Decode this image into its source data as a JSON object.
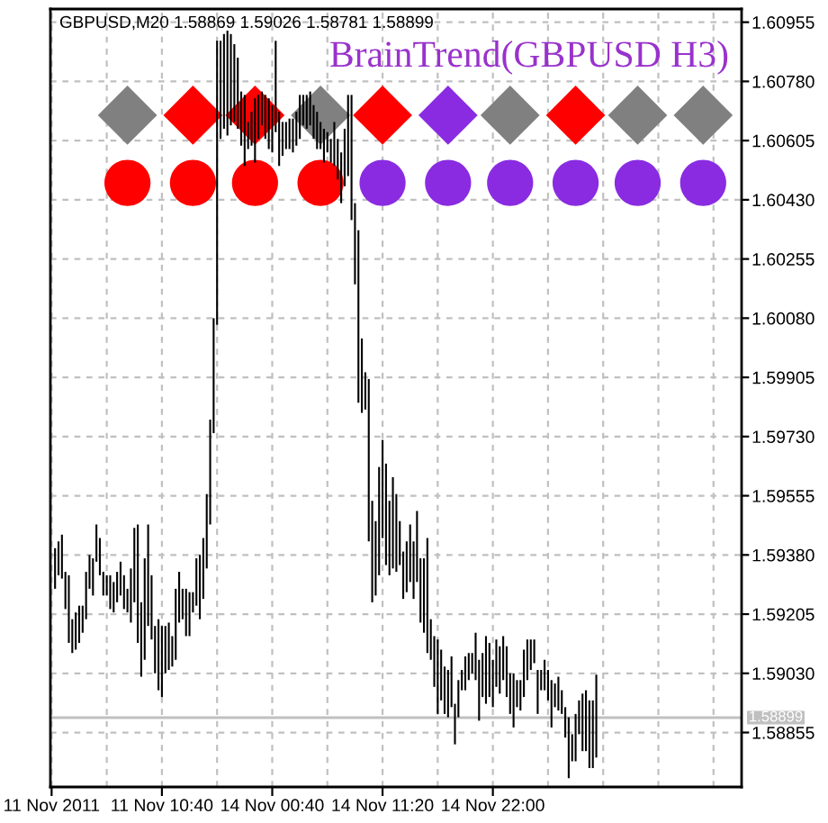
{
  "chart_data": {
    "type": "bar",
    "title": "GBPUSD,M20 1.58869 1.59026 1.58781 1.58899",
    "subtitle": "BrainTrend(GBPUSD H3)",
    "categories": [
      "11 Nov 2011",
      null,
      null,
      null,
      null,
      null,
      null,
      null,
      null,
      null,
      null,
      null,
      null,
      null,
      null,
      null,
      null,
      null,
      null,
      null,
      null,
      null,
      null,
      null,
      null,
      null,
      null,
      null,
      null,
      null,
      null,
      null,
      "11 Nov 10:40",
      null,
      null,
      null,
      null,
      null,
      null,
      null,
      null,
      null,
      null,
      null,
      null,
      null,
      null,
      null,
      null,
      null,
      null,
      null,
      null,
      null,
      null,
      null,
      null,
      null,
      null,
      null,
      null,
      null,
      null,
      null,
      "14 Nov 00:40",
      null,
      null,
      null,
      null,
      null,
      null,
      null,
      null,
      null,
      null,
      null,
      null,
      null,
      null,
      null,
      null,
      null,
      null,
      null,
      null,
      null,
      null,
      null,
      null,
      null,
      null,
      null,
      null,
      null,
      null,
      null,
      "14 Nov 11:20",
      null,
      null,
      null,
      null,
      null,
      null,
      null,
      null,
      null,
      null,
      null,
      null,
      null,
      null,
      null,
      null,
      null,
      null,
      null,
      null,
      null,
      null,
      null,
      null,
      null,
      null,
      null,
      null,
      null,
      null,
      null,
      "14 Nov 22:00",
      null,
      null,
      null,
      null,
      null,
      null,
      null,
      null,
      null,
      null,
      null,
      null,
      null,
      null,
      null,
      null,
      null,
      null,
      null,
      null,
      null,
      null,
      null,
      null,
      null,
      null,
      null,
      null,
      null,
      null,
      null,
      null,
      null,
      null,
      null,
      null,
      null,
      null,
      null,
      null,
      null,
      null,
      null,
      null,
      null,
      null,
      null,
      null,
      null,
      null,
      null,
      null,
      null,
      null,
      null,
      null,
      null,
      null,
      null,
      null,
      null,
      null,
      null,
      null,
      null,
      null,
      null,
      null,
      null,
      null,
      null,
      null
    ],
    "series": [
      {
        "color": "#000000",
        "values": [
          null,
          0.0012,
          0.001,
          0.0013,
          0.0011,
          0.002,
          0.001,
          0.0011,
          0.0011,
          0.0008,
          0.0014,
          0.001,
          0.0011,
          0.0011,
          0.0011,
          0.0007,
          0.0006,
          0.001,
          0.0009,
          0.0009,
          0.001,
          0.001,
          0.0007,
          0.0016,
          0.0022,
          0.0035,
          0.0022,
          0.003,
          0.003,
          0.0019,
          0.0014,
          0.0021,
          0.0021,
          0.0014,
          0.0014,
          0.0009,
          0.0021,
          0.0015,
          0.0009,
          0.0014,
          0.0013,
          0.0006,
          0.0014,
          0.0019,
          0.0018,
          0.0022,
          0.0031,
          0.0034,
          0.0084,
          0.0029,
          0.0028,
          0.0031,
          0.0027,
          0.0023,
          0.0021,
          0.0016,
          0.0021,
          0.0008,
          0.001,
          0.0019,
          0.0013,
          0.001,
          0.0013,
          0.0015,
          0.0014,
          0.0027,
          0.0016,
          0.001,
          0.0008,
          0.0009,
          0.001,
          0.001,
          0.0013,
          0.0009,
          0.001,
          0.001,
          0.001,
          0.0011,
          0.0008,
          0.001,
          0.0006,
          0.0007,
          0.0013,
          0.0012,
          0.0015,
          0.0017,
          0.0024,
          0.0037,
          0.0024,
          0.0051,
          0.0022,
          0.0011,
          0.0048,
          0.003,
          0.0022,
          0.0032,
          0.0029,
          0.003,
          0.0022,
          0.0027,
          0.0023,
          0.0013,
          0.0014,
          0.0015,
          0.0017,
          0.0017,
          0.0021,
          0.0019,
          0.0022,
          0.0034,
          0.0012,
          0.0015,
          0.0022,
          0.0015,
          0.0014,
          0.0014,
          0.0015,
          0.0012,
          0.0011,
          0.0006,
          0.001,
          0.0008,
          0.0006,
          0.0014,
          0.0018,
          0.0013,
          0.002,
          0.0016,
          0.0014,
          0.0014,
          0.0014,
          0.0013,
          0.0015,
          0.0012,
          0.0016,
          0.0008,
          0.0009,
          0.0014,
          0.0012,
          0.0009,
          0.0007,
          0.0013,
          0.0006,
          0.0009,
          0.0009,
          0.0014,
          0.0007,
          0.001,
          0.0007,
          0.0009,
          0.0018,
          0.0008,
          0.0014,
          0.001,
          0.0017,
          0.0018,
          0.002,
          0.002,
          0.00245,
          null,
          null,
          null,
          null,
          null,
          null,
          null,
          null,
          null,
          null,
          null,
          null,
          null,
          null,
          null,
          null,
          null,
          null,
          null,
          null,
          null,
          null,
          null,
          null,
          null,
          null,
          null,
          null,
          null,
          null,
          null,
          null,
          null,
          null,
          null,
          null,
          null,
          null,
          null,
          null,
          null,
          null
        ],
        "base": [
          null,
          1.5928,
          1.5932,
          1.5931,
          1.5922,
          1.5912,
          1.5909,
          1.591,
          1.5912,
          1.5915,
          1.5919,
          1.5928,
          1.5926,
          1.5936,
          1.5932,
          1.5926,
          1.5926,
          1.5922,
          1.5921,
          1.5924,
          1.5926,
          1.5922,
          1.5921,
          1.5918,
          1.5924,
          1.5912,
          1.5902,
          1.5907,
          1.5917,
          1.5913,
          1.5903,
          1.5898,
          1.5896,
          1.5903,
          1.5904,
          1.5905,
          1.5907,
          1.5918,
          1.5919,
          1.5914,
          1.5914,
          1.5921,
          1.5923,
          1.5919,
          1.5925,
          1.5934,
          1.5947,
          1.5974,
          1.6006,
          1.6061,
          1.6064,
          1.6062,
          1.6065,
          1.6066,
          1.6064,
          1.6059,
          1.6053,
          1.6058,
          1.6059,
          1.6054,
          1.6061,
          1.6065,
          1.6061,
          1.6058,
          1.6057,
          1.6063,
          1.6053,
          1.6056,
          1.6058,
          1.6058,
          1.6057,
          1.6059,
          1.6061,
          1.6065,
          1.6064,
          1.6065,
          1.6061,
          1.6058,
          1.6058,
          1.6054,
          1.6057,
          1.6054,
          1.6053,
          1.6049,
          1.6042,
          1.6047,
          1.605,
          1.6037,
          1.6018,
          1.5983,
          1.598,
          1.5981,
          1.5942,
          1.5924,
          1.5926,
          1.5932,
          1.5943,
          1.5935,
          1.5932,
          1.5934,
          1.5933,
          1.5935,
          1.5925,
          1.5927,
          1.593,
          1.5925,
          1.593,
          1.5918,
          1.5915,
          1.5909,
          1.5907,
          1.5899,
          1.5891,
          1.5895,
          1.5891,
          1.589,
          1.5893,
          1.5882,
          1.589,
          1.5898,
          1.5898,
          1.5901,
          1.5903,
          1.5901,
          1.5889,
          1.5896,
          1.5894,
          1.5896,
          1.5893,
          1.5899,
          1.5897,
          1.5901,
          1.5896,
          1.5891,
          1.5887,
          1.5893,
          1.5892,
          1.5896,
          1.5901,
          1.5904,
          1.5906,
          1.5891,
          1.5898,
          1.5898,
          1.5895,
          1.5887,
          1.5893,
          1.5892,
          1.5891,
          1.5884,
          1.5872,
          1.5877,
          1.5877,
          1.5885,
          1.588,
          1.588,
          1.5875,
          1.5875,
          1.58781,
          null,
          null,
          null,
          null,
          null,
          null,
          null,
          null,
          null,
          null,
          null,
          null,
          null,
          null,
          null,
          null,
          null,
          null,
          null,
          null,
          null,
          null,
          null,
          null,
          null,
          null,
          null,
          null,
          null,
          null,
          null,
          null,
          null,
          null,
          null,
          null,
          null,
          null,
          null,
          null,
          null,
          null
        ]
      },
      {
        "type": "scatter",
        "marker": "diamond",
        "values": [
          null,
          null,
          null,
          null,
          null,
          null,
          null,
          null,
          null,
          null,
          null,
          null,
          null,
          null,
          null,
          null,
          null,
          null,
          null,
          null,
          null,
          null,
          1.6068,
          null,
          null,
          null,
          null,
          null,
          null,
          null,
          null,
          null,
          null,
          null,
          null,
          null,
          null,
          null,
          null,
          null,
          null,
          1.6068,
          null,
          null,
          null,
          null,
          null,
          null,
          null,
          null,
          null,
          null,
          null,
          null,
          null,
          null,
          null,
          null,
          null,
          1.6068,
          null,
          null,
          null,
          null,
          null,
          null,
          null,
          null,
          null,
          null,
          null,
          null,
          null,
          null,
          null,
          null,
          null,
          null,
          1.6068,
          null,
          null,
          null,
          null,
          null,
          null,
          null,
          null,
          null,
          null,
          null,
          null,
          null,
          null,
          null,
          null,
          null,
          1.6068,
          null,
          null,
          null,
          null,
          null,
          null,
          null,
          null,
          null,
          null,
          null,
          null,
          null,
          null,
          null,
          null,
          null,
          null,
          1.6068,
          null,
          null,
          null,
          null,
          null,
          null,
          null,
          null,
          null,
          null,
          null,
          null,
          null,
          null,
          null,
          null,
          null,
          1.6068,
          null,
          null,
          null,
          null,
          null,
          null,
          null,
          null,
          null,
          null,
          null,
          null,
          null,
          null,
          null,
          null,
          null,
          null,
          1.6068,
          null,
          null,
          null,
          null,
          null,
          null,
          null,
          null,
          null,
          null,
          null,
          null,
          null,
          null,
          null,
          null,
          null,
          1.6068,
          null,
          null,
          null,
          null,
          null,
          null,
          null,
          null,
          null,
          null,
          null,
          null,
          null,
          null,
          null,
          null,
          null,
          null,
          1.6068,
          null,
          null,
          null,
          null,
          null,
          null,
          null,
          null,
          null,
          null,
          null
        ],
        "colors": [
          null,
          null,
          null,
          null,
          null,
          null,
          null,
          null,
          null,
          null,
          null,
          null,
          null,
          null,
          null,
          null,
          null,
          null,
          null,
          null,
          null,
          null,
          "#808080",
          null,
          null,
          null,
          null,
          null,
          null,
          null,
          null,
          null,
          null,
          null,
          null,
          null,
          null,
          null,
          null,
          null,
          null,
          "#ff0000",
          null,
          null,
          null,
          null,
          null,
          null,
          null,
          null,
          null,
          null,
          null,
          null,
          null,
          null,
          null,
          null,
          null,
          "#ff0000",
          null,
          null,
          null,
          null,
          null,
          null,
          null,
          null,
          null,
          null,
          null,
          null,
          null,
          null,
          null,
          null,
          null,
          null,
          "#808080",
          null,
          null,
          null,
          null,
          null,
          null,
          null,
          null,
          null,
          null,
          null,
          null,
          null,
          null,
          null,
          null,
          null,
          "#ff0000",
          null,
          null,
          null,
          null,
          null,
          null,
          null,
          null,
          null,
          null,
          null,
          null,
          null,
          null,
          null,
          null,
          null,
          null,
          "#8a2be2",
          null,
          null,
          null,
          null,
          null,
          null,
          null,
          null,
          null,
          null,
          null,
          null,
          null,
          null,
          null,
          null,
          null,
          "#808080",
          null,
          null,
          null,
          null,
          null,
          null,
          null,
          null,
          null,
          null,
          null,
          null,
          null,
          null,
          null,
          null,
          null,
          null,
          "#ff0000",
          null,
          null,
          null,
          null,
          null,
          null,
          null,
          null,
          null,
          null,
          null,
          null,
          null,
          null,
          null,
          null,
          null,
          "#808080",
          null,
          null,
          null,
          null,
          null,
          null,
          null,
          null,
          null,
          null,
          null,
          null,
          null,
          null,
          null,
          null,
          null,
          null,
          "#808080",
          null,
          null,
          null,
          null,
          null,
          null,
          null,
          null,
          null,
          null,
          null
        ]
      },
      {
        "type": "scatter",
        "marker": "circle",
        "values": [
          null,
          null,
          null,
          null,
          null,
          null,
          null,
          null,
          null,
          null,
          null,
          null,
          null,
          null,
          null,
          null,
          null,
          null,
          null,
          null,
          null,
          null,
          1.6048,
          null,
          null,
          null,
          null,
          null,
          null,
          null,
          null,
          null,
          null,
          null,
          null,
          null,
          null,
          null,
          null,
          null,
          null,
          1.6048,
          null,
          null,
          null,
          null,
          null,
          null,
          null,
          null,
          null,
          null,
          null,
          null,
          null,
          null,
          null,
          null,
          null,
          1.6048,
          null,
          null,
          null,
          null,
          null,
          null,
          null,
          null,
          null,
          null,
          null,
          null,
          null,
          null,
          null,
          null,
          null,
          null,
          1.6048,
          null,
          null,
          null,
          null,
          null,
          null,
          null,
          null,
          null,
          null,
          null,
          null,
          null,
          null,
          null,
          null,
          null,
          1.6048,
          null,
          null,
          null,
          null,
          null,
          null,
          null,
          null,
          null,
          null,
          null,
          null,
          null,
          null,
          null,
          null,
          null,
          null,
          1.6048,
          null,
          null,
          null,
          null,
          null,
          null,
          null,
          null,
          null,
          null,
          null,
          null,
          null,
          null,
          null,
          null,
          null,
          1.6048,
          null,
          null,
          null,
          null,
          null,
          null,
          null,
          null,
          null,
          null,
          null,
          null,
          null,
          null,
          null,
          null,
          null,
          null,
          1.6048,
          null,
          null,
          null,
          null,
          null,
          null,
          null,
          null,
          null,
          null,
          null,
          null,
          null,
          null,
          null,
          null,
          null,
          1.6048,
          null,
          null,
          null,
          null,
          null,
          null,
          null,
          null,
          null,
          null,
          null,
          null,
          null,
          null,
          null,
          null,
          null,
          null,
          1.6048,
          null,
          null,
          null,
          null,
          null,
          null,
          null,
          null,
          null,
          null,
          null
        ],
        "colors": [
          null,
          null,
          null,
          null,
          null,
          null,
          null,
          null,
          null,
          null,
          null,
          null,
          null,
          null,
          null,
          null,
          null,
          null,
          null,
          null,
          null,
          null,
          "#ff0000",
          null,
          null,
          null,
          null,
          null,
          null,
          null,
          null,
          null,
          null,
          null,
          null,
          null,
          null,
          null,
          null,
          null,
          null,
          "#ff0000",
          null,
          null,
          null,
          null,
          null,
          null,
          null,
          null,
          null,
          null,
          null,
          null,
          null,
          null,
          null,
          null,
          null,
          "#ff0000",
          null,
          null,
          null,
          null,
          null,
          null,
          null,
          null,
          null,
          null,
          null,
          null,
          null,
          null,
          null,
          null,
          null,
          null,
          "#ff0000",
          null,
          null,
          null,
          null,
          null,
          null,
          null,
          null,
          null,
          null,
          null,
          null,
          null,
          null,
          null,
          null,
          null,
          "#8a2be2",
          null,
          null,
          null,
          null,
          null,
          null,
          null,
          null,
          null,
          null,
          null,
          null,
          null,
          null,
          null,
          null,
          null,
          null,
          "#8a2be2",
          null,
          null,
          null,
          null,
          null,
          null,
          null,
          null,
          null,
          null,
          null,
          null,
          null,
          null,
          null,
          null,
          null,
          "#8a2be2",
          null,
          null,
          null,
          null,
          null,
          null,
          null,
          null,
          null,
          null,
          null,
          null,
          null,
          null,
          null,
          null,
          null,
          null,
          "#8a2be2",
          null,
          null,
          null,
          null,
          null,
          null,
          null,
          null,
          null,
          null,
          null,
          null,
          null,
          null,
          null,
          null,
          null,
          "#8a2be2",
          null,
          null,
          null,
          null,
          null,
          null,
          null,
          null,
          null,
          null,
          null,
          null,
          null,
          null,
          null,
          null,
          null,
          null,
          "#8a2be2",
          null,
          null,
          null,
          null,
          null,
          null,
          null,
          null,
          null,
          null,
          null
        ]
      }
    ],
    "ylim": [
      1.58694,
      1.60994
    ],
    "yticks": [
      1.60955,
      {
        "value": 1.6078,
        "label": "1.60780"
      },
      1.60605,
      {
        "value": 1.6043,
        "label": "1.60430"
      },
      1.60255,
      {
        "value": 1.6008,
        "label": "1.60080"
      },
      1.59905,
      {
        "value": 1.5973,
        "label": "1.59730"
      },
      1.59555,
      {
        "value": 1.5938,
        "label": "1.59380"
      },
      1.59205,
      {
        "value": 1.5903,
        "label": "1.59030"
      },
      1.58855
    ],
    "grid": true,
    "ref_lines": [
      {
        "axis": "y",
        "value": 1.58899,
        "label": "1.58899",
        "color": "#c0c0c0"
      }
    ]
  }
}
